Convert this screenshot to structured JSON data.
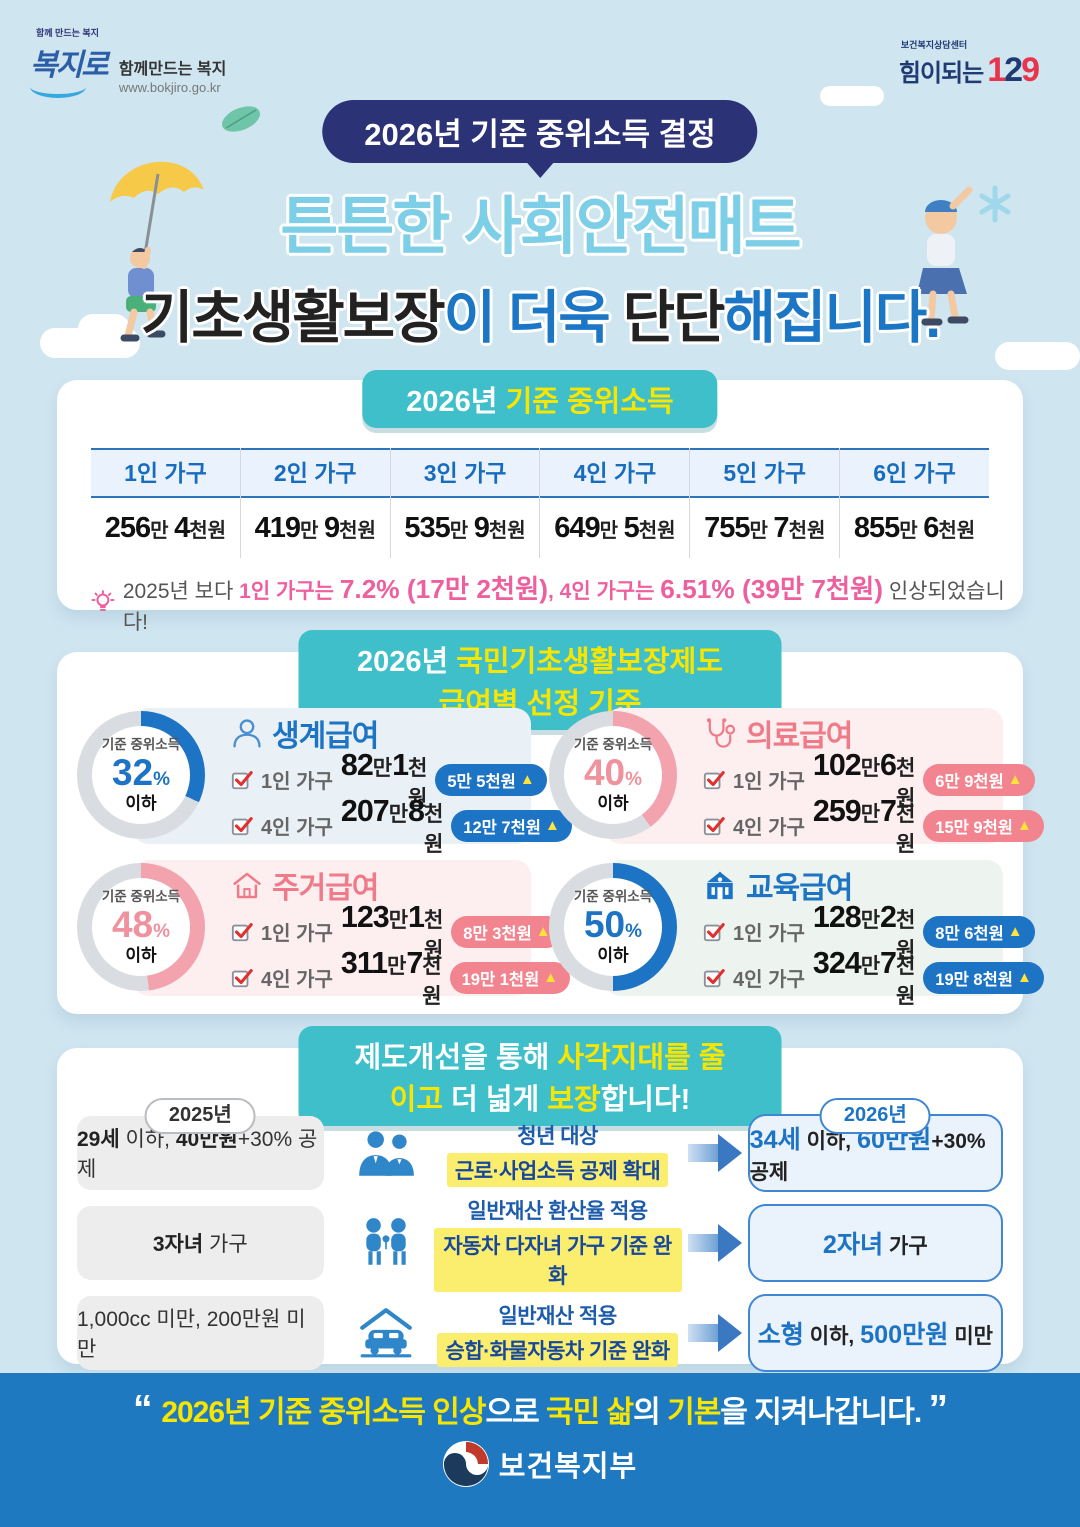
{
  "page": {
    "bg": "#cfe5f0",
    "teal": "#3fbfca",
    "navy": "#2b3276",
    "blue": "#1d74c4",
    "pink": "#ee5f9e",
    "yellow": "#f8e600",
    "band_blue": "#1e79c1",
    "blue_ring": "#1d74c4",
    "pink_ring": "#f2a3ad",
    "gray_ring": "#d9dde1"
  },
  "icons": {
    "up_arrow": "▲",
    "names": [
      "bokjiro-logo",
      "callcenter-129-logo",
      "lightbulb-icon",
      "person-icon",
      "stethoscope-icon",
      "house-icon",
      "school-icon",
      "checkbox-icon",
      "increase-arrow-icon",
      "workers-icon",
      "children-icon",
      "car-icon",
      "ministry-emblem",
      "umbrella-illustration",
      "leaf-icon",
      "asterisk-icon",
      "cloud-shape"
    ]
  },
  "top": {
    "bokjiro": {
      "small": "함께 만드는 복지",
      "name": "복지로",
      "tagline": "함께만드는 복지",
      "url": "www.bokjiro.go.kr"
    },
    "callcenter": {
      "small": "보건복지상담센터",
      "name": "힘이되는",
      "number": [
        {
          "t": "1",
          "c": "red"
        },
        {
          "t": "2",
          "c": "nv"
        },
        {
          "t": "9",
          "c": "red"
        }
      ]
    }
  },
  "hero": {
    "badge": "2026년 기준 중위소득 결정",
    "title1": "튼튼한 사회안전매트",
    "title2": [
      {
        "t": "기초생활보장",
        "c": "b"
      },
      {
        "t": "이 더욱 ",
        "c": "r"
      },
      {
        "t": "단단",
        "c": "b"
      },
      {
        "t": "해집니다.",
        "c": "r"
      }
    ]
  },
  "income": {
    "header": [
      {
        "t": "2026년 ",
        "c": "wh"
      },
      {
        "t": "기준 중위소득",
        "c": "yl"
      }
    ],
    "columns": [
      {
        "label": "1인 가구",
        "value": [
          {
            "t": "256",
            "c": "n"
          },
          {
            "t": "만 ",
            "c": "u"
          },
          {
            "t": "4",
            "c": "n"
          },
          {
            "t": "천원",
            "c": "u"
          }
        ]
      },
      {
        "label": "2인 가구",
        "value": [
          {
            "t": "419",
            "c": "n"
          },
          {
            "t": "만 ",
            "c": "u"
          },
          {
            "t": "9",
            "c": "n"
          },
          {
            "t": "천원",
            "c": "u"
          }
        ]
      },
      {
        "label": "3인 가구",
        "value": [
          {
            "t": "535",
            "c": "n"
          },
          {
            "t": "만 ",
            "c": "u"
          },
          {
            "t": "9",
            "c": "n"
          },
          {
            "t": "천원",
            "c": "u"
          }
        ]
      },
      {
        "label": "4인 가구",
        "value": [
          {
            "t": "649",
            "c": "n"
          },
          {
            "t": "만 ",
            "c": "u"
          },
          {
            "t": "5",
            "c": "n"
          },
          {
            "t": "천원",
            "c": "u"
          }
        ]
      },
      {
        "label": "5인 가구",
        "value": [
          {
            "t": "755",
            "c": "n"
          },
          {
            "t": "만 ",
            "c": "u"
          },
          {
            "t": "7",
            "c": "n"
          },
          {
            "t": "천원",
            "c": "u"
          }
        ]
      },
      {
        "label": "6인 가구",
        "value": [
          {
            "t": "855",
            "c": "n"
          },
          {
            "t": "만 ",
            "c": "u"
          },
          {
            "t": "6",
            "c": "n"
          },
          {
            "t": "천원",
            "c": "u"
          }
        ]
      }
    ],
    "note": [
      {
        "t": "2025년 보다 ",
        "c": "g"
      },
      {
        "t": "1인 가구는 ",
        "c": "pk"
      },
      {
        "t": "7.2% (17만 2천원)",
        "c": "pkb"
      },
      {
        "t": ", ",
        "c": "pk"
      },
      {
        "t": "4인 가구는 ",
        "c": "pk"
      },
      {
        "t": "6.51% (39만 7천원)",
        "c": "pkb"
      },
      {
        "t": " 인상되었습니다!",
        "c": "g"
      }
    ]
  },
  "benefits": {
    "header": [
      {
        "t": "2026년 ",
        "c": "wh"
      },
      {
        "t": "국민기초생활보장제도 급여별 선정 기준",
        "c": "yl"
      }
    ],
    "cards": [
      {
        "title": "생계급여",
        "theme": "blue",
        "bg": "#e9f0f6",
        "icon": "person-icon",
        "criteria_label": "기준 중위소득",
        "percent": "32",
        "percent_sign": "%",
        "below": "이하",
        "rows": [
          {
            "household": "1인 가구",
            "amount": [
              {
                "t": "82",
                "c": "n"
              },
              {
                "t": "만 ",
                "c": "u"
              },
              {
                "t": "1",
                "c": "n"
              },
              {
                "t": "천원",
                "c": "u"
              }
            ],
            "increase": "5만 5천원"
          },
          {
            "household": "4인 가구",
            "amount": [
              {
                "t": "207",
                "c": "n"
              },
              {
                "t": "만 ",
                "c": "u"
              },
              {
                "t": "8",
                "c": "n"
              },
              {
                "t": "천원",
                "c": "u"
              }
            ],
            "increase": "12만 7천원"
          }
        ]
      },
      {
        "title": "의료급여",
        "theme": "pink",
        "bg": "#fdeef0",
        "icon": "stethoscope-icon",
        "criteria_label": "기준 중위소득",
        "percent": "40",
        "percent_sign": "%",
        "below": "이하",
        "rows": [
          {
            "household": "1인 가구",
            "amount": [
              {
                "t": "102",
                "c": "n"
              },
              {
                "t": "만 ",
                "c": "u"
              },
              {
                "t": "6",
                "c": "n"
              },
              {
                "t": "천원",
                "c": "u"
              }
            ],
            "increase": "6만 9천원"
          },
          {
            "household": "4인 가구",
            "amount": [
              {
                "t": "259",
                "c": "n"
              },
              {
                "t": "만 ",
                "c": "u"
              },
              {
                "t": "7",
                "c": "n"
              },
              {
                "t": "천원",
                "c": "u"
              }
            ],
            "increase": "15만 9천원"
          }
        ]
      },
      {
        "title": "주거급여",
        "theme": "pink",
        "bg": "#fdeef0",
        "icon": "house-icon",
        "criteria_label": "기준 중위소득",
        "percent": "48",
        "percent_sign": "%",
        "below": "이하",
        "rows": [
          {
            "household": "1인 가구",
            "amount": [
              {
                "t": "123",
                "c": "n"
              },
              {
                "t": "만 ",
                "c": "u"
              },
              {
                "t": "1",
                "c": "n"
              },
              {
                "t": "천원",
                "c": "u"
              }
            ],
            "increase": "8만 3천원"
          },
          {
            "household": "4인 가구",
            "amount": [
              {
                "t": "311",
                "c": "n"
              },
              {
                "t": "만 ",
                "c": "u"
              },
              {
                "t": "7",
                "c": "n"
              },
              {
                "t": "천원",
                "c": "u"
              }
            ],
            "increase": "19만 1천원"
          }
        ]
      },
      {
        "title": "교육급여",
        "theme": "blue",
        "bg": "#edf3ee",
        "icon": "school-icon",
        "criteria_label": "기준 중위소득",
        "percent": "50",
        "percent_sign": "%",
        "below": "이하",
        "rows": [
          {
            "household": "1인 가구",
            "amount": [
              {
                "t": "128",
                "c": "n"
              },
              {
                "t": "만 ",
                "c": "u"
              },
              {
                "t": "2",
                "c": "n"
              },
              {
                "t": "천원",
                "c": "u"
              }
            ],
            "increase": "8만 6천원"
          },
          {
            "household": "4인 가구",
            "amount": [
              {
                "t": "324",
                "c": "n"
              },
              {
                "t": "만 ",
                "c": "u"
              },
              {
                "t": "7",
                "c": "n"
              },
              {
                "t": "천원",
                "c": "u"
              }
            ],
            "increase": "19만 8천원"
          }
        ]
      }
    ]
  },
  "improvements": {
    "header": [
      {
        "t": "제도개선을 통해 ",
        "c": "wh"
      },
      {
        "t": "사각지대를 줄이고",
        "c": "yl"
      },
      {
        "t": " 더 넓게 ",
        "c": "wh"
      },
      {
        "t": "보장",
        "c": "yl"
      },
      {
        "t": "합니다!",
        "c": "wh"
      }
    ],
    "year_left": "2025년",
    "year_right": "2026년",
    "rows": [
      {
        "icon": "workers-icon",
        "before": [
          {
            "t": "29세",
            "c": "b"
          },
          {
            "t": " 이하, ",
            "c": "r"
          },
          {
            "t": "40만원",
            "c": "b"
          },
          {
            "t": "+30% 공제",
            "c": "r"
          }
        ],
        "change_line1": "청년 대상",
        "change_line2": "근로·사업소득 공제 확대",
        "after": [
          {
            "t": "34세",
            "c": "blb"
          },
          {
            "t": " 이하, ",
            "c": "d"
          },
          {
            "t": "60만원",
            "c": "blb"
          },
          {
            "t": "+30% 공제",
            "c": "d"
          }
        ]
      },
      {
        "icon": "children-icon",
        "before": [
          {
            "t": "3자녀",
            "c": "b"
          },
          {
            "t": " 가구",
            "c": "r"
          }
        ],
        "change_line1": "일반재산 환산율 적용",
        "change_line2": "자동차 다자녀 가구 기준 완화",
        "after": [
          {
            "t": "2자녀",
            "c": "blb"
          },
          {
            "t": " 가구",
            "c": "d"
          }
        ]
      },
      {
        "icon": "car-icon",
        "before": [
          {
            "t": "1,000cc 미만, 200만원 미만",
            "c": "r"
          }
        ],
        "change_line1": "일반재산 적용",
        "change_line2": "승합·화물자동차 기준 완화",
        "after": [
          {
            "t": "소형",
            "c": "blb"
          },
          {
            "t": " 이하, ",
            "c": "d"
          },
          {
            "t": "500만원",
            "c": "blb"
          },
          {
            "t": " 미만",
            "c": "d"
          }
        ]
      }
    ]
  },
  "footer": {
    "quote": [
      {
        "t": "“ ",
        "c": "qm"
      },
      {
        "t": "2026년 기준 중위소득 인상",
        "c": "yl"
      },
      {
        "t": "으로 ",
        "c": "wh"
      },
      {
        "t": "국민 삶",
        "c": "yl"
      },
      {
        "t": "의 ",
        "c": "wh"
      },
      {
        "t": "기본",
        "c": "yl"
      },
      {
        "t": "을 ",
        "c": "wh"
      },
      {
        "t": "지켜나갑니다. ",
        "c": "wh"
      },
      {
        "t": "”",
        "c": "qm"
      }
    ],
    "ministry": "보건복지부"
  }
}
